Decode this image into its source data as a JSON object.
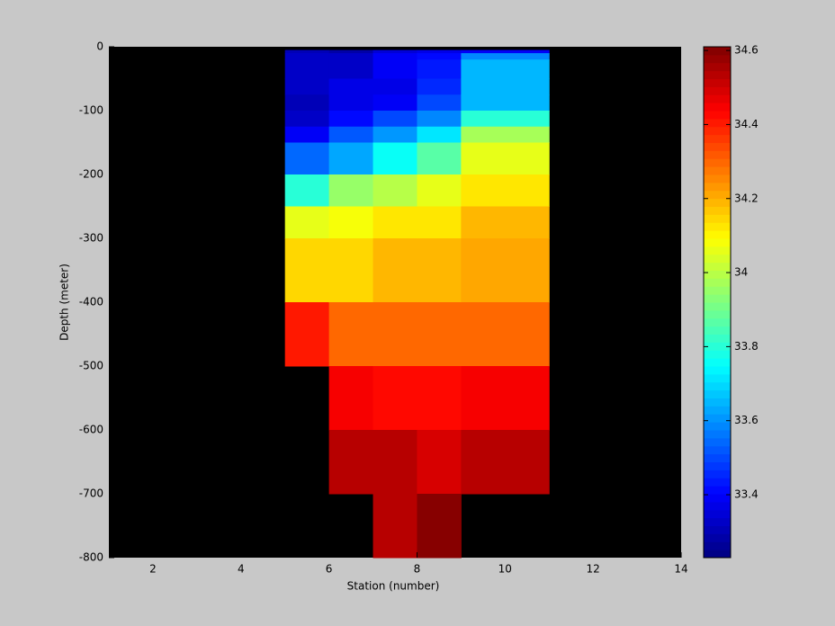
{
  "chart_data": {
    "type": "heatmap",
    "xlabel": "Station (number)",
    "ylabel": "Depth (meter)",
    "colormap": "jet",
    "background": "#000000",
    "x_edges": [
      5,
      6,
      7,
      8,
      9,
      11
    ],
    "y_edges": [
      0,
      -5,
      -10,
      -20,
      -50,
      -75,
      -100,
      -125,
      -150,
      -200,
      -250,
      -300,
      -400,
      -500,
      -600,
      -700,
      -800
    ],
    "values": [
      [
        null,
        33.3,
        33.32,
        33.32,
        33.32,
        33.3,
        33.32,
        33.4,
        33.55,
        33.8,
        34.05,
        34.15,
        34.4,
        null,
        null,
        null
      ],
      [
        null,
        33.28,
        33.32,
        33.32,
        33.36,
        33.36,
        33.42,
        33.52,
        33.62,
        33.95,
        34.08,
        34.15,
        34.3,
        34.45,
        34.54,
        null
      ],
      [
        null,
        33.34,
        33.4,
        33.4,
        33.38,
        33.4,
        33.5,
        33.6,
        33.75,
        34.0,
        34.12,
        34.18,
        34.3,
        34.42,
        34.54,
        34.54
      ],
      [
        null,
        33.38,
        33.42,
        33.44,
        33.46,
        33.5,
        33.58,
        33.72,
        33.87,
        34.05,
        34.13,
        34.2,
        34.3,
        34.42,
        34.5,
        34.6
      ],
      [
        null,
        33.4,
        33.58,
        33.66,
        33.66,
        33.66,
        33.8,
        33.97,
        34.05,
        34.12,
        34.18,
        34.22,
        34.3,
        34.45,
        34.54,
        null
      ]
    ],
    "xlim": [
      1,
      14
    ],
    "xticks": [
      2,
      4,
      6,
      8,
      10,
      12,
      14
    ],
    "ylim": [
      -800,
      0
    ],
    "yticks": [
      0,
      -100,
      -200,
      -300,
      -400,
      -500,
      -600,
      -700,
      -800
    ],
    "clim": [
      33.23,
      34.61
    ],
    "cticks": [
      33.4,
      33.6,
      33.8,
      34,
      34.2,
      34.4,
      34.6
    ]
  }
}
